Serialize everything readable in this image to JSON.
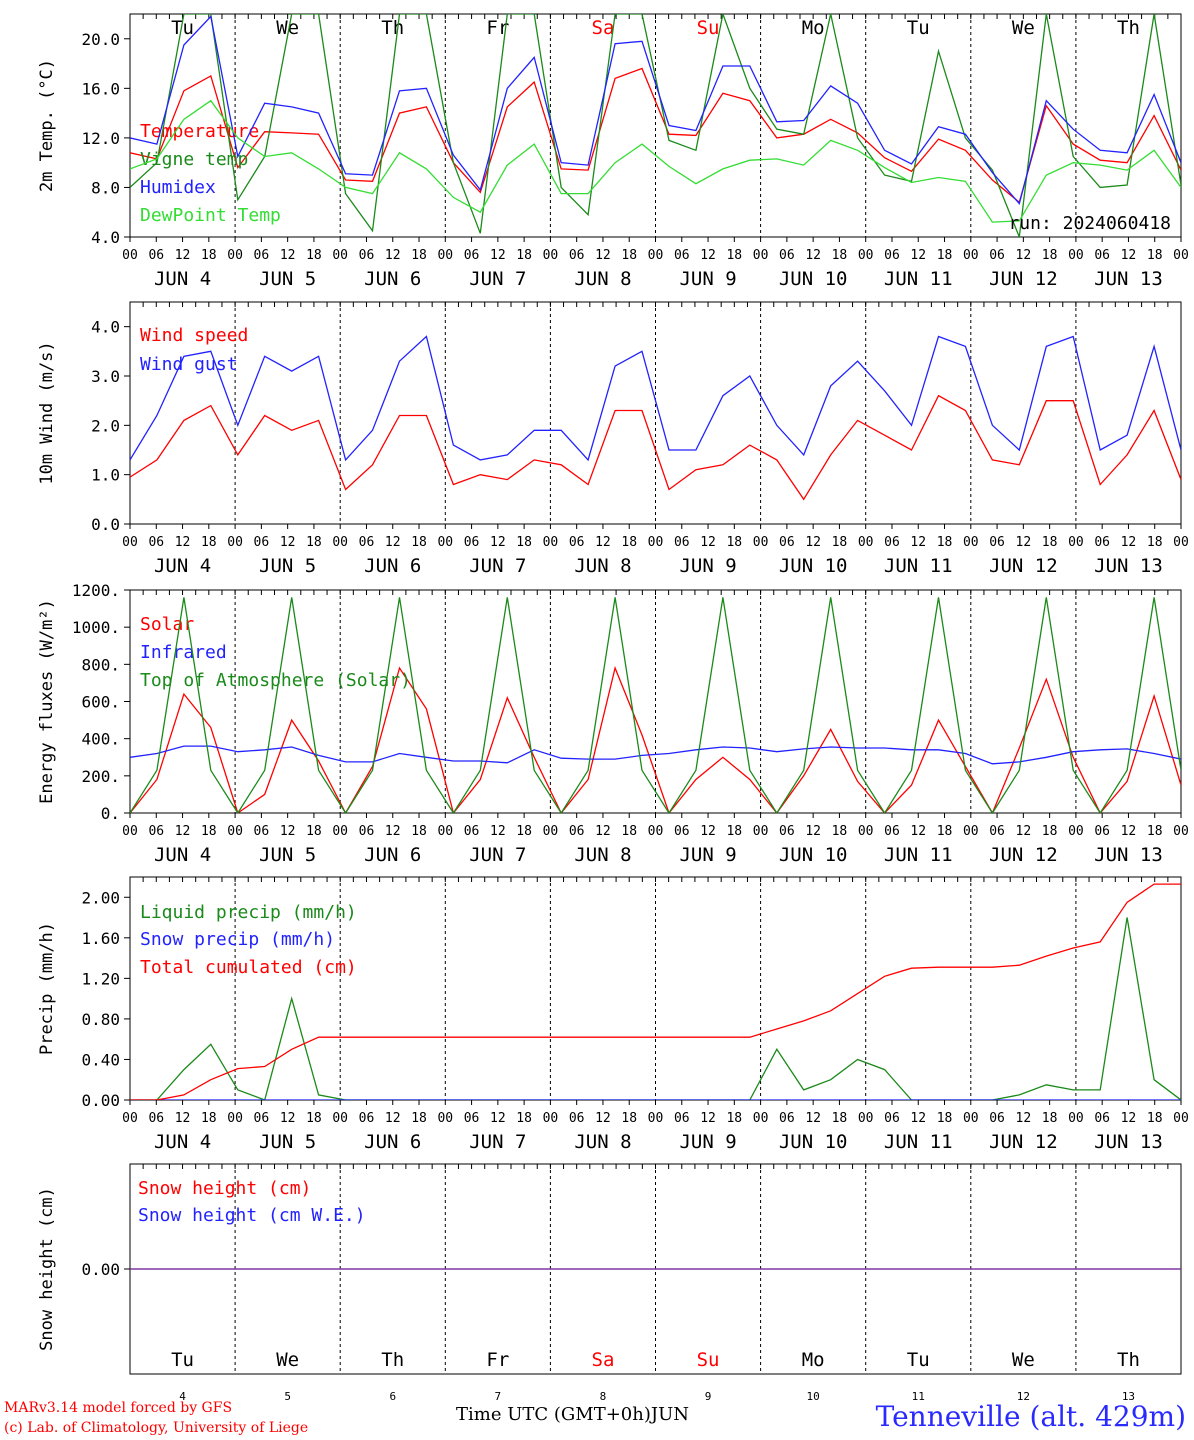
{
  "days": [
    {
      "dow": "Tu",
      "date": "JUN  4",
      "num": "4",
      "weekend": false
    },
    {
      "dow": "We",
      "date": "JUN  5",
      "num": "5",
      "weekend": false
    },
    {
      "dow": "Th",
      "date": "JUN  6",
      "num": "6",
      "weekend": false
    },
    {
      "dow": "Fr",
      "date": "JUN  7",
      "num": "7",
      "weekend": false
    },
    {
      "dow": "Sa",
      "date": "JUN  8",
      "num": "8",
      "weekend": true
    },
    {
      "dow": "Su",
      "date": "JUN  9",
      "num": "9",
      "weekend": true
    },
    {
      "dow": "Mo",
      "date": "JUN 10",
      "num": "10",
      "weekend": false
    },
    {
      "dow": "Tu",
      "date": "JUN 11",
      "num": "11",
      "weekend": false
    },
    {
      "dow": "We",
      "date": "JUN 12",
      "num": "12",
      "weekend": false
    },
    {
      "dow": "Th",
      "date": "JUN 13",
      "num": "13",
      "weekend": false
    }
  ],
  "hour_ticks": [
    "00",
    "06",
    "12",
    "18"
  ],
  "colors": {
    "red": "#ff0000",
    "green": "#1a8a1a",
    "blue": "#2222ff",
    "lightgreen": "#33dd33",
    "purple": "#7b2fa0"
  },
  "chart_data": [
    {
      "type": "line",
      "ylabel": "2m Temp. (°C)",
      "ylim": [
        4,
        22
      ],
      "yticks": [
        "4.0",
        "8.0",
        "12.0",
        "16.0",
        "20.0"
      ],
      "ytick_values": [
        4,
        8,
        12,
        16,
        20
      ],
      "annotation": "run: 2024060418",
      "x_hours_step": 6,
      "series": [
        {
          "name": "Temperature",
          "color": "red",
          "values": [
            10.8,
            10.3,
            15.8,
            17.0,
            9.6,
            12.5,
            12.4,
            12.3,
            8.6,
            8.5,
            14.0,
            14.5,
            10.0,
            7.6,
            14.5,
            16.5,
            9.5,
            9.4,
            16.8,
            17.6,
            12.3,
            12.2,
            15.6,
            15.0,
            12.0,
            12.3,
            13.5,
            12.4,
            10.4,
            9.3,
            11.9,
            11.0,
            8.6,
            6.8,
            14.6,
            11.5,
            10.2,
            10.0,
            13.8,
            9.4
          ]
        },
        {
          "name": "Vigne temp",
          "color": "green",
          "values": [
            8.0,
            10.0,
            22.0,
            22.0,
            7.0,
            10.5,
            22.0,
            22.0,
            7.5,
            4.5,
            22.0,
            22.0,
            10.0,
            4.3,
            22.0,
            22.0,
            8.0,
            5.8,
            22.0,
            22.0,
            11.8,
            11.0,
            22.0,
            16.0,
            12.7,
            12.3,
            22.0,
            12.0,
            9.0,
            8.5,
            19.0,
            12.0,
            9.4,
            4.0,
            22.0,
            10.5,
            8.0,
            8.2,
            22.0,
            8.2
          ]
        },
        {
          "name": "Humidex",
          "color": "blue",
          "values": [
            12.0,
            11.5,
            19.5,
            21.8,
            10.5,
            14.8,
            14.5,
            14.0,
            9.1,
            9.0,
            15.8,
            16.0,
            10.6,
            7.8,
            16.0,
            18.5,
            10.0,
            9.8,
            19.6,
            19.8,
            13.0,
            12.6,
            17.8,
            17.8,
            13.3,
            13.4,
            16.2,
            14.8,
            11.0,
            9.9,
            12.9,
            12.3,
            9.2,
            6.7,
            15.0,
            12.7,
            11.0,
            10.8,
            15.5,
            10.0
          ]
        },
        {
          "name": "DewPoint Temp",
          "color": "lightgreen",
          "values": [
            9.5,
            10.3,
            13.5,
            15.0,
            12.0,
            10.5,
            10.8,
            9.5,
            8.0,
            7.5,
            10.8,
            9.5,
            7.2,
            6.0,
            9.8,
            11.5,
            7.5,
            7.5,
            10.0,
            11.5,
            9.7,
            8.3,
            9.5,
            10.2,
            10.3,
            9.8,
            11.8,
            11.0,
            9.6,
            8.4,
            8.8,
            8.5,
            5.2,
            5.3,
            9.0,
            10.0,
            9.8,
            9.4,
            11.0,
            8.0
          ]
        }
      ]
    },
    {
      "type": "line",
      "ylabel": "10m Wind (m/s)",
      "ylim": [
        0,
        4.5
      ],
      "yticks": [
        "0.0",
        "1.0",
        "2.0",
        "3.0",
        "4.0"
      ],
      "ytick_values": [
        0,
        1,
        2,
        3,
        4
      ],
      "x_hours_step": 6,
      "series": [
        {
          "name": "Wind speed",
          "color": "red",
          "values": [
            0.95,
            1.3,
            2.1,
            2.4,
            1.4,
            2.2,
            1.9,
            2.1,
            0.7,
            1.2,
            2.2,
            2.2,
            0.8,
            1.0,
            0.9,
            1.3,
            1.2,
            0.8,
            2.3,
            2.3,
            0.7,
            1.1,
            1.2,
            1.6,
            1.3,
            0.5,
            1.4,
            2.1,
            1.8,
            1.5,
            2.6,
            2.3,
            1.3,
            1.2,
            2.5,
            2.5,
            0.8,
            1.4,
            2.3,
            0.9
          ]
        },
        {
          "name": "Wind gust",
          "color": "blue",
          "values": [
            1.3,
            2.2,
            3.4,
            3.5,
            2.0,
            3.4,
            3.1,
            3.4,
            1.3,
            1.9,
            3.3,
            3.8,
            1.6,
            1.3,
            1.4,
            1.9,
            1.9,
            1.3,
            3.2,
            3.5,
            1.5,
            1.5,
            2.6,
            3.0,
            2.0,
            1.4,
            2.8,
            3.3,
            2.7,
            2.0,
            3.8,
            3.6,
            2.0,
            1.5,
            3.6,
            3.8,
            1.5,
            1.8,
            3.6,
            1.5
          ]
        }
      ]
    },
    {
      "type": "line",
      "ylabel": "Energy fluxes (W/m²)",
      "ylim": [
        0,
        1200
      ],
      "yticks": [
        "0.",
        "200.",
        "400.",
        "600.",
        "800.",
        "1000.",
        "1200."
      ],
      "ytick_values": [
        0,
        200,
        400,
        600,
        800,
        1000,
        1200
      ],
      "x_hours_step": 6,
      "series": [
        {
          "name": "Solar",
          "color": "red",
          "values": [
            0,
            180,
            640,
            460,
            0,
            100,
            500,
            280,
            0,
            250,
            780,
            560,
            0,
            180,
            620,
            300,
            0,
            180,
            780,
            420,
            0,
            180,
            300,
            180,
            0,
            200,
            450,
            170,
            0,
            150,
            500,
            250,
            0,
            350,
            720,
            300,
            0,
            170,
            630,
            150
          ]
        },
        {
          "name": "Infrared",
          "color": "blue",
          "values": [
            300,
            320,
            360,
            360,
            330,
            340,
            355,
            310,
            275,
            275,
            320,
            300,
            280,
            280,
            270,
            340,
            295,
            290,
            290,
            310,
            320,
            340,
            355,
            350,
            330,
            345,
            355,
            350,
            350,
            340,
            340,
            320,
            265,
            275,
            300,
            330,
            340,
            345,
            320,
            290
          ]
        },
        {
          "name": "Top of Atmosphere (Solar)",
          "color": "green",
          "values": [
            0,
            230,
            1160,
            230,
            0,
            230,
            1160,
            230,
            0,
            230,
            1160,
            230,
            0,
            230,
            1160,
            230,
            0,
            230,
            1160,
            230,
            0,
            230,
            1160,
            230,
            0,
            230,
            1160,
            230,
            0,
            230,
            1160,
            230,
            0,
            230,
            1160,
            230,
            0,
            230,
            1160,
            230
          ]
        }
      ]
    },
    {
      "type": "line",
      "ylabel": "Precip (mm/h)",
      "ylim": [
        0,
        2.2
      ],
      "yticks": [
        "0.00",
        "0.40",
        "0.80",
        "1.20",
        "1.60",
        "2.00"
      ],
      "ytick_values": [
        0,
        0.4,
        0.8,
        1.2,
        1.6,
        2.0
      ],
      "x_hours_step": 6,
      "series": [
        {
          "name": "Liquid precip (mm/h)",
          "color": "green",
          "values": [
            0,
            0,
            0.3,
            0.55,
            0.1,
            0,
            1.0,
            0.05,
            0,
            0,
            0,
            0,
            0,
            0,
            0,
            0,
            0,
            0,
            0,
            0,
            0,
            0,
            0,
            0,
            0.5,
            0.1,
            0.2,
            0.4,
            0.3,
            0,
            0,
            0,
            0,
            0.05,
            0.15,
            0.1,
            0.1,
            1.8,
            0.2,
            0
          ]
        },
        {
          "name": "Snow precip (mm/h)",
          "color": "blue",
          "values": [
            0,
            0,
            0,
            0,
            0,
            0,
            0,
            0,
            0,
            0,
            0,
            0,
            0,
            0,
            0,
            0,
            0,
            0,
            0,
            0,
            0,
            0,
            0,
            0,
            0,
            0,
            0,
            0,
            0,
            0,
            0,
            0,
            0,
            0,
            0,
            0,
            0,
            0,
            0,
            0
          ]
        },
        {
          "name": "Total cumulated (cm)",
          "color": "red",
          "values": [
            0,
            0,
            0.05,
            0.2,
            0.31,
            0.33,
            0.5,
            0.62,
            0.62,
            0.62,
            0.62,
            0.62,
            0.62,
            0.62,
            0.62,
            0.62,
            0.62,
            0.62,
            0.62,
            0.62,
            0.62,
            0.62,
            0.62,
            0.62,
            0.7,
            0.78,
            0.88,
            1.05,
            1.22,
            1.3,
            1.31,
            1.31,
            1.31,
            1.33,
            1.42,
            1.5,
            1.56,
            1.95,
            2.13,
            2.13
          ]
        }
      ]
    },
    {
      "type": "line",
      "ylabel": "Snow height (cm)",
      "ylim": [
        -1,
        1
      ],
      "yticks": [
        "0.00"
      ],
      "ytick_values": [
        0
      ],
      "x_hours_step": 6,
      "series": [
        {
          "name": "Snow height (cm)",
          "color": "red",
          "values": [
            0,
            0
          ]
        },
        {
          "name": "Snow height (cm W.E.)",
          "color": "blue",
          "values": [
            0,
            0
          ]
        }
      ]
    }
  ],
  "footer": {
    "model_line": "MARv3.14 model forced by GFS",
    "credit_line": "(c) Lab. of Climatology, University of Liege",
    "xlabel": "Time UTC (GMT+0h)",
    "month": "JUN",
    "station": "Tenneville (alt. 429m)"
  }
}
